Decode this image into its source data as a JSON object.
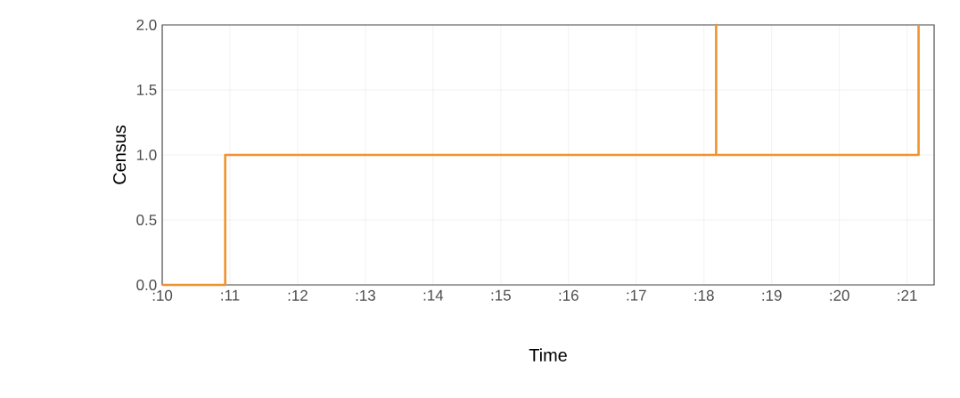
{
  "chart_data": {
    "type": "step",
    "xlabel": "Time",
    "ylabel": "Census",
    "x": [
      10,
      10.93,
      18.18,
      18.18,
      21.17
    ],
    "values": [
      0,
      1,
      2,
      1,
      2
    ],
    "color": "#f0922e",
    "xlim": [
      10,
      21.4
    ],
    "xticks": [
      {
        "value": 10,
        "label": ":10"
      },
      {
        "value": 11,
        "label": ":11"
      },
      {
        "value": 12,
        "label": ":12"
      },
      {
        "value": 13,
        "label": ":13"
      },
      {
        "value": 14,
        "label": ":14"
      },
      {
        "value": 15,
        "label": ":15"
      },
      {
        "value": 16,
        "label": ":16"
      },
      {
        "value": 17,
        "label": ":17"
      },
      {
        "value": 18,
        "label": ":18"
      },
      {
        "value": 19,
        "label": ":19"
      },
      {
        "value": 20,
        "label": ":20"
      },
      {
        "value": 21,
        "label": ":21"
      }
    ],
    "ylim": [
      0,
      2
    ],
    "yticks": [
      {
        "value": 0,
        "label": "0.0"
      },
      {
        "value": 0.5,
        "label": "0.5"
      },
      {
        "value": 1,
        "label": "1.0"
      },
      {
        "value": 1.5,
        "label": "1.5"
      },
      {
        "value": 2,
        "label": "2.0"
      }
    ],
    "grid": true
  }
}
